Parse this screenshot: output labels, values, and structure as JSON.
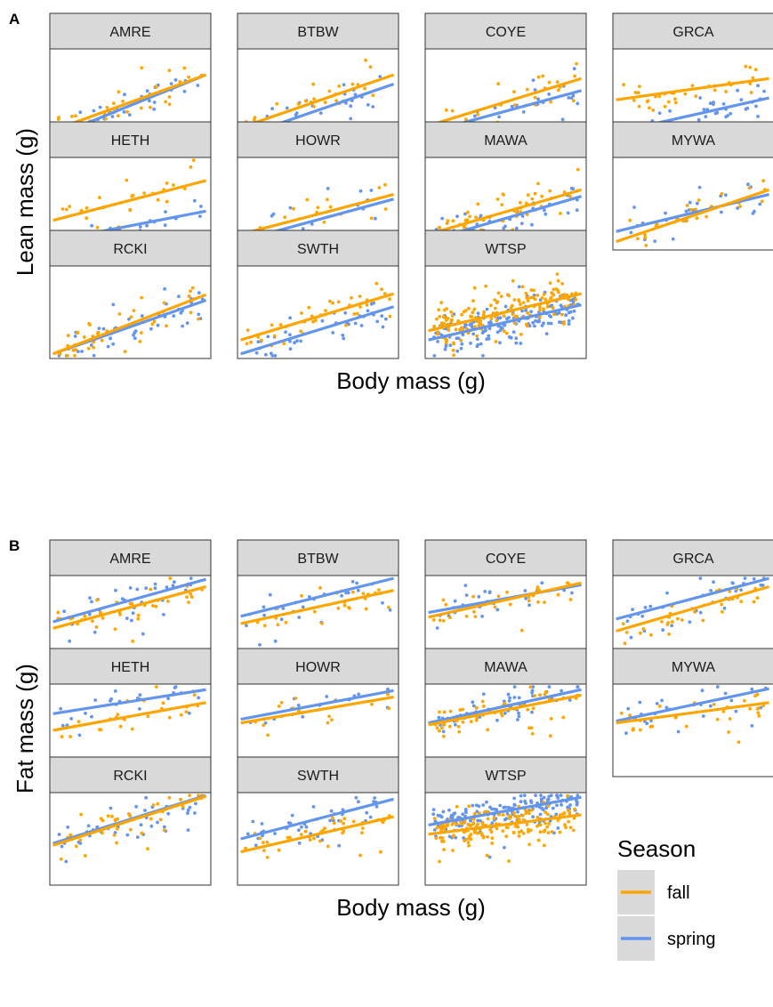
{
  "figure": {
    "colors": {
      "fall": "#FFA500",
      "spring": "#6495ED",
      "strip": "#D9D9D9",
      "border": "#333333"
    },
    "panels": [
      {
        "tag": "A",
        "ylabel": "Lean mass (g)",
        "xlabel": "Body mass (g)"
      },
      {
        "tag": "B",
        "ylabel": "Fat mass (g)",
        "xlabel": "Body mass (g)"
      }
    ],
    "legend": {
      "title": "Season",
      "items": [
        {
          "label": "fall",
          "color": "#FFA500"
        },
        {
          "label": "spring",
          "color": "#6495ED"
        }
      ]
    }
  },
  "chart_data": [
    {
      "type": "scatter",
      "tag": "A",
      "xlabel": "Body mass (g)",
      "ylabel": "Lean mass (g)",
      "facets": [
        "AMRE",
        "BTBW",
        "COYE",
        "GRCA",
        "HETH",
        "HOWR",
        "MAWA",
        "MYWA",
        "RCKI",
        "SWTH",
        "WTSP"
      ],
      "series": [
        {
          "name": "fall",
          "color": "#FFA500",
          "fit_lines": [
            {
              "facet": "AMRE",
              "y": [
                0.12,
                0.72
              ]
            },
            {
              "facet": "BTBW",
              "y": [
                0.15,
                0.72
              ]
            },
            {
              "facet": "COYE",
              "y": [
                0.17,
                0.68
              ]
            },
            {
              "facet": "GRCA",
              "y": [
                0.45,
                0.68
              ]
            },
            {
              "facet": "HETH",
              "y": [
                0.32,
                0.75
              ]
            },
            {
              "facet": "HOWR",
              "y": [
                0.17,
                0.6
              ]
            },
            {
              "facet": "MAWA",
              "y": [
                0.17,
                0.65
              ]
            },
            {
              "facet": "MYWA",
              "y": [
                0.09,
                0.65
              ]
            },
            {
              "facet": "RCKI",
              "y": [
                0.05,
                0.69
              ]
            },
            {
              "facet": "SWTH",
              "y": [
                0.2,
                0.7
              ]
            },
            {
              "facet": "WTSP",
              "y": [
                0.3,
                0.7
              ]
            }
          ]
        },
        {
          "name": "spring",
          "color": "#6495ED",
          "fit_lines": [
            {
              "facet": "AMRE",
              "y": [
                0.05,
                0.72
              ]
            },
            {
              "facet": "BTBW",
              "y": [
                0.05,
                0.62
              ]
            },
            {
              "facet": "COYE",
              "y": [
                0.1,
                0.55
              ]
            },
            {
              "facet": "GRCA",
              "y": [
                0.1,
                0.47
              ]
            },
            {
              "facet": "HETH",
              "y": [
                0.1,
                0.42
              ]
            },
            {
              "facet": "HOWR",
              "y": [
                0.1,
                0.55
              ]
            },
            {
              "facet": "MAWA",
              "y": [
                0.1,
                0.58
              ]
            },
            {
              "facet": "MYWA",
              "y": [
                0.2,
                0.6
              ]
            },
            {
              "facet": "RCKI",
              "y": [
                0.05,
                0.63
              ]
            },
            {
              "facet": "SWTH",
              "y": [
                0.05,
                0.56
              ]
            },
            {
              "facet": "WTSP",
              "y": [
                0.2,
                0.58
              ]
            }
          ]
        }
      ]
    },
    {
      "type": "scatter",
      "tag": "B",
      "xlabel": "Body mass (g)",
      "ylabel": "Fat mass (g)",
      "facets": [
        "AMRE",
        "BTBW",
        "COYE",
        "GRCA",
        "HETH",
        "HOWR",
        "MAWA",
        "MYWA",
        "RCKI",
        "SWTH",
        "WTSP"
      ],
      "series": [
        {
          "name": "fall",
          "color": "#FFA500",
          "fit_lines": [
            {
              "facet": "AMRE",
              "y": [
                0.43,
                0.88
              ]
            },
            {
              "facet": "BTBW",
              "y": [
                0.48,
                0.84
              ]
            },
            {
              "facet": "COYE",
              "y": [
                0.55,
                0.92
              ]
            },
            {
              "facet": "GRCA",
              "y": [
                0.4,
                0.88
              ]
            },
            {
              "facet": "HETH",
              "y": [
                0.5,
                0.8
              ]
            },
            {
              "facet": "HOWR",
              "y": [
                0.58,
                0.86
              ]
            },
            {
              "facet": "MAWA",
              "y": [
                0.56,
                0.88
              ]
            },
            {
              "facet": "MYWA",
              "y": [
                0.58,
                0.8
              ]
            },
            {
              "facet": "RCKI",
              "y": [
                0.43,
                0.96
              ]
            },
            {
              "facet": "SWTH",
              "y": [
                0.36,
                0.74
              ]
            },
            {
              "facet": "WTSP",
              "y": [
                0.55,
                0.76
              ]
            }
          ]
        },
        {
          "name": "spring",
          "color": "#6495ED",
          "fit_lines": [
            {
              "facet": "AMRE",
              "y": [
                0.5,
                0.96
              ]
            },
            {
              "facet": "BTBW",
              "y": [
                0.56,
                0.97
              ]
            },
            {
              "facet": "COYE",
              "y": [
                0.6,
                0.9
              ]
            },
            {
              "facet": "GRCA",
              "y": [
                0.53,
                0.97
              ]
            },
            {
              "facet": "HETH",
              "y": [
                0.68,
                0.94
              ]
            },
            {
              "facet": "HOWR",
              "y": [
                0.62,
                0.93
              ]
            },
            {
              "facet": "MAWA",
              "y": [
                0.58,
                0.94
              ]
            },
            {
              "facet": "MYWA",
              "y": [
                0.6,
                0.95
              ]
            },
            {
              "facet": "RCKI",
              "y": [
                0.45,
                0.97
              ]
            },
            {
              "facet": "SWTH",
              "y": [
                0.5,
                0.93
              ]
            },
            {
              "facet": "WTSP",
              "y": [
                0.65,
                0.95
              ]
            }
          ]
        }
      ]
    }
  ]
}
